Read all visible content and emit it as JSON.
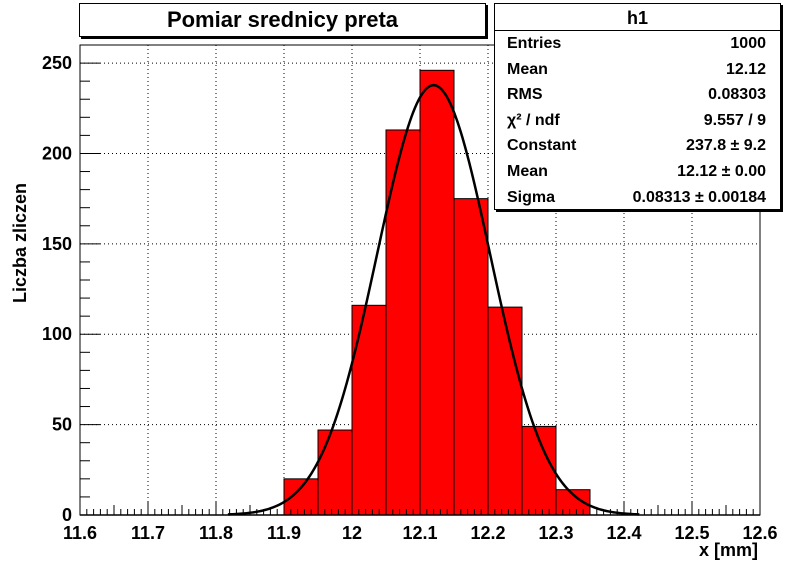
{
  "chart_data": {
    "type": "histogram",
    "title": "Pomiar srednicy preta",
    "xlabel": "x [mm]",
    "ylabel": "Liczba zliczen",
    "xlim": [
      11.6,
      12.6
    ],
    "ylim": [
      0,
      260
    ],
    "x_ticks": [
      "11.6",
      "11.7",
      "11.8",
      "11.9",
      "12",
      "12.1",
      "12.2",
      "12.3",
      "12.4",
      "12.5",
      "12.6"
    ],
    "y_ticks": [
      "0",
      "50",
      "100",
      "150",
      "200",
      "250"
    ],
    "bin_width": 0.05,
    "bin_edges": [
      11.9,
      11.95,
      12.0,
      12.05,
      12.1,
      12.15,
      12.2,
      12.25,
      12.3,
      12.35
    ],
    "values": [
      20,
      47,
      116,
      213,
      246,
      175,
      115,
      49,
      14
    ],
    "fit": {
      "function": "gaus",
      "constant": 237.8,
      "mean": 12.12,
      "sigma": 0.08313,
      "color": "#000000"
    },
    "bar_color": "#ff0000",
    "grid": true
  },
  "stats_box": {
    "title": "h1",
    "rows": [
      {
        "key": "Entries",
        "value": "1000"
      },
      {
        "key": "Mean",
        "value": "12.12"
      },
      {
        "key": "RMS",
        "value": "0.08303"
      },
      {
        "key": "χ² / ndf",
        "value": "9.557 / 9"
      },
      {
        "key": "Constant",
        "value": "237.8 ± 9.2"
      },
      {
        "key": "Mean",
        "value": "12.12 ± 0.00"
      },
      {
        "key": "Sigma",
        "value": "0.08313 ± 0.00184"
      }
    ]
  }
}
